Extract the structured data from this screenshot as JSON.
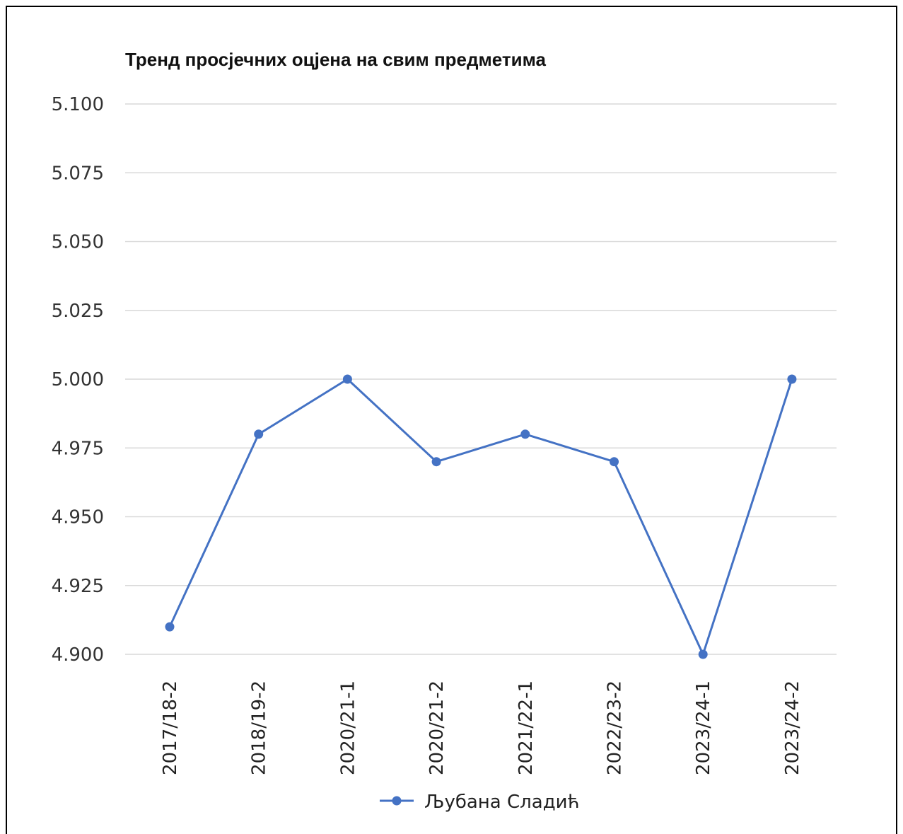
{
  "chart_data": {
    "type": "line",
    "title": "Тренд просјечних оцјена на свим предметима",
    "xlabel": "",
    "ylabel": "",
    "categories": [
      "2017/18-2",
      "2018/19-2",
      "2020/21-1",
      "2020/21-2",
      "2021/22-1",
      "2022/23-2",
      "2023/24-1",
      "2023/24-2"
    ],
    "series": [
      {
        "name": "Љубана Сладић",
        "values": [
          4.91,
          4.98,
          5.0,
          4.97,
          4.98,
          4.97,
          4.9,
          5.0
        ],
        "color": "#4472C4"
      }
    ],
    "ylim": [
      4.9,
      5.1
    ],
    "yticks": [
      "5.100",
      "5.075",
      "5.050",
      "5.025",
      "5.000",
      "4.975",
      "4.950",
      "4.925",
      "4.900"
    ],
    "grid": true,
    "gridColor": "#d9d9d9",
    "legend": "bottom"
  }
}
